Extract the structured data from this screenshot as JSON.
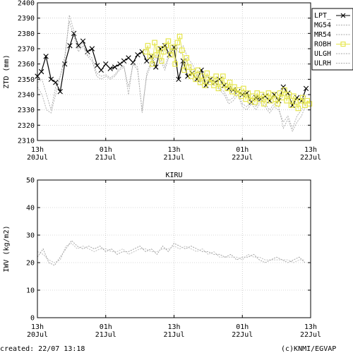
{
  "footer": {
    "created": "created: 22/07 13:18",
    "credit": "(c)KNMI/EGVAP"
  },
  "chart_data": [
    {
      "type": "line",
      "ylabel": "ZTD (mm)",
      "ylim": [
        2310,
        2400
      ],
      "yticks": [
        2310,
        2320,
        2330,
        2340,
        2350,
        2360,
        2370,
        2380,
        2390,
        2400
      ],
      "x_range_hours": [
        0,
        48
      ],
      "xticks": [
        {
          "hour": 0,
          "line1": "13h",
          "line2": "20Jul"
        },
        {
          "hour": 12,
          "line1": "01h",
          "line2": "21Jul"
        },
        {
          "hour": 24,
          "line1": "13h",
          "line2": "21Jul"
        },
        {
          "hour": 36,
          "line1": "01h",
          "line2": "22Jul"
        },
        {
          "hour": 48,
          "line1": "13h",
          "line2": "22Jul"
        }
      ],
      "grid": true,
      "legend_position": "right",
      "series": [
        {
          "name": "LPT_",
          "color": "#000000",
          "marker": "x",
          "x": [
            0,
            0.7,
            1.5,
            2.4,
            3.2,
            4.0,
            4.8,
            5.7,
            6.4,
            7.2,
            8.0,
            8.8,
            9.6,
            10.5,
            11.2,
            12.0,
            12.8,
            13.6,
            14.5,
            15.2,
            16.0,
            16.8,
            17.6,
            18.4,
            19.2,
            20.0,
            20.8,
            21.6,
            22.4,
            23.2,
            24.0,
            24.8,
            25.6,
            26.4,
            27.2,
            28.0,
            28.8,
            29.6,
            30.4,
            31.2,
            32.0,
            32.8,
            33.6,
            34.4,
            35.2,
            36.0,
            36.8,
            37.6,
            38.4,
            39.2,
            40.0,
            40.8,
            41.6,
            42.4,
            43.2,
            44.0,
            44.8,
            45.6,
            46.4,
            47.2
          ],
          "y": [
            2352,
            2355,
            2365,
            2350,
            2348,
            2342,
            2360,
            2372,
            2380,
            2372,
            2375,
            2368,
            2370,
            2359,
            2356,
            2360,
            2357,
            2358,
            2360,
            2362,
            2364,
            2361,
            2366,
            2368,
            2362,
            2365,
            2358,
            2370,
            2372,
            2366,
            2371,
            2350,
            2362,
            2352,
            2354,
            2350,
            2356,
            2346,
            2350,
            2348,
            2350,
            2346,
            2344,
            2343,
            2342,
            2340,
            2341,
            2335,
            2338,
            2337,
            2339,
            2336,
            2340,
            2336,
            2345,
            2341,
            2333,
            2338,
            2336,
            2344
          ]
        },
        {
          "name": "MG54",
          "color": "#aaaaaa",
          "marker": "none",
          "x": [
            0,
            0.8,
            1.6,
            2.4,
            3.2,
            4.0,
            4.8,
            5.6,
            6.4,
            7.2,
            8.0,
            8.8,
            9.6,
            10.4,
            11.2,
            12.0,
            12.8,
            13.6,
            14.4,
            15.2,
            16.0,
            16.8,
            17.6,
            18.4,
            19.2,
            20.0,
            20.8,
            21.6,
            22.4,
            23.2,
            24.0,
            24.8,
            25.6,
            26.4,
            27.2,
            28.0,
            28.8,
            29.6,
            30.4,
            31.2,
            32.0,
            32.8,
            33.6,
            34.4,
            35.2,
            36.0,
            36.8,
            37.6,
            38.4,
            39.2,
            40.0,
            40.8,
            41.6,
            42.4,
            43.2,
            44.0,
            44.8,
            45.6,
            46.4,
            47.2
          ],
          "y": [
            2348,
            2350,
            2340,
            2330,
            2345,
            2352,
            2365,
            2388,
            2378,
            2368,
            2372,
            2365,
            2362,
            2352,
            2350,
            2352,
            2350,
            2352,
            2356,
            2358,
            2345,
            2360,
            2356,
            2330,
            2352,
            2360,
            2364,
            2362,
            2356,
            2366,
            2370,
            2368,
            2366,
            2360,
            2356,
            2352,
            2346,
            2349,
            2348,
            2346,
            2343,
            2340,
            2334,
            2336,
            2340,
            2332,
            2330,
            2334,
            2330,
            2335,
            2332,
            2328,
            2332,
            2330,
            2322,
            2326,
            2318,
            2326,
            2330,
            2340
          ]
        },
        {
          "name": "MR54",
          "color": "#aaaaaa",
          "marker": "none",
          "x": [
            0,
            0.8,
            1.6,
            2.4,
            3.2,
            4.0,
            4.8,
            5.6,
            6.4,
            7.2,
            8.0,
            8.8,
            9.6,
            10.4,
            11.2,
            12.0,
            12.8,
            13.6,
            14.4,
            15.2,
            16.0,
            16.8,
            17.6,
            18.4,
            19.2,
            20.0,
            20.8,
            21.6,
            22.4,
            23.2,
            24.0,
            24.8,
            25.6,
            26.4,
            27.2,
            28.0,
            28.8,
            29.6,
            30.4,
            31.2,
            32.0,
            32.8,
            33.6,
            34.4,
            35.2,
            36.0,
            36.8,
            37.6,
            38.4,
            39.2,
            40.0,
            40.8,
            41.6,
            42.4,
            43.2,
            44.0,
            44.8,
            45.6,
            46.4,
            47.2
          ],
          "y": [
            2345,
            2340,
            2330,
            2328,
            2340,
            2352,
            2362,
            2392,
            2382,
            2370,
            2374,
            2366,
            2364,
            2354,
            2352,
            2353,
            2351,
            2353,
            2357,
            2359,
            2340,
            2361,
            2358,
            2328,
            2354,
            2362,
            2366,
            2364,
            2358,
            2368,
            2372,
            2370,
            2372,
            2364,
            2360,
            2354,
            2348,
            2352,
            2350,
            2348,
            2344,
            2342,
            2336,
            2338,
            2342,
            2334,
            2332,
            2336,
            2332,
            2337,
            2334,
            2330,
            2334,
            2332,
            2318,
            2324,
            2316,
            2322,
            2326,
            2334
          ]
        },
        {
          "name": "ROBH",
          "color": "#e6e64c",
          "marker": "square",
          "x": [
            19.0,
            19.4,
            19.8,
            20.2,
            20.6,
            21.0,
            21.4,
            21.8,
            22.2,
            22.6,
            23.0,
            23.4,
            23.8,
            24.2,
            24.6,
            25.0,
            25.4,
            25.8,
            26.2,
            26.6,
            27.0,
            27.4,
            27.8,
            28.2,
            28.6,
            29.0,
            29.4,
            29.8,
            30.2,
            30.6,
            31.0,
            31.4,
            31.8,
            32.2,
            32.6,
            33.0,
            33.4,
            33.8,
            34.2,
            34.6,
            35.0,
            35.4,
            35.8,
            36.2,
            36.6,
            37.0,
            37.4,
            37.8,
            38.2,
            38.6,
            39.0,
            39.4,
            39.8,
            40.2,
            40.6,
            41.0,
            41.4,
            41.8,
            42.2,
            42.6,
            43.0,
            43.4,
            43.8,
            44.2,
            44.6,
            45.0,
            45.4,
            45.8,
            46.2,
            46.6,
            47.0,
            47.4,
            47.8
          ],
          "y": [
            2368,
            2372,
            2365,
            2360,
            2374,
            2366,
            2370,
            2362,
            2368,
            2372,
            2375,
            2366,
            2371,
            2360,
            2374,
            2378,
            2369,
            2356,
            2364,
            2358,
            2352,
            2355,
            2350,
            2356,
            2348,
            2352,
            2346,
            2354,
            2348,
            2350,
            2346,
            2352,
            2344,
            2348,
            2352,
            2346,
            2344,
            2348,
            2342,
            2345,
            2341,
            2343,
            2339,
            2344,
            2337,
            2341,
            2336,
            2339,
            2335,
            2341,
            2337,
            2340,
            2334,
            2338,
            2341,
            2336,
            2340,
            2337,
            2334,
            2341,
            2338,
            2343,
            2336,
            2340,
            2333,
            2339,
            2335,
            2331,
            2336,
            2338,
            2333,
            2336,
            2334
          ]
        },
        {
          "name": "ULGH",
          "color": "#aaaaaa",
          "marker": "none",
          "x": [],
          "y": []
        },
        {
          "name": "ULRH",
          "color": "#aaaaaa",
          "marker": "none",
          "x": [],
          "y": []
        }
      ]
    },
    {
      "type": "line",
      "title": "KIRU",
      "ylabel": "IWV (kg/m2)",
      "ylim": [
        0,
        50
      ],
      "yticks": [
        0,
        10,
        20,
        30,
        40,
        50
      ],
      "x_range_hours": [
        0,
        48
      ],
      "xticks": [
        {
          "hour": 0,
          "line1": "13h",
          "line2": "20Jul"
        },
        {
          "hour": 12,
          "line1": "01h",
          "line2": "21Jul"
        },
        {
          "hour": 24,
          "line1": "13h",
          "line2": "21Jul"
        },
        {
          "hour": 36,
          "line1": "01h",
          "line2": "22Jul"
        },
        {
          "hour": 48,
          "line1": "13h",
          "line2": "22Jul"
        }
      ],
      "grid": true,
      "series": [
        {
          "name": "",
          "color": "#999999",
          "marker": "none",
          "x": [
            0,
            1.0,
            2.0,
            3.0,
            4.0,
            5.0,
            6.0,
            7.0,
            8.0,
            9.0,
            10.0,
            11.0,
            12.0,
            13.0,
            14.0,
            15.0,
            16.0,
            17.0,
            18.0,
            19.0,
            20.0,
            21.0,
            22.0,
            23.0,
            24.0,
            25.0,
            26.0,
            27.0,
            28.0,
            29.0,
            30.0,
            31.0,
            32.0,
            33.0,
            34.0,
            35.0,
            36.0,
            37.0,
            38.0,
            39.0,
            40.0,
            41.0,
            42.0,
            43.0,
            44.0,
            45.0,
            46.0,
            47.0
          ],
          "y": [
            22,
            25,
            20,
            19,
            22,
            25,
            28,
            26,
            25,
            26,
            25,
            26,
            24,
            25,
            23,
            24,
            24,
            25,
            26,
            24,
            25,
            23,
            26,
            24,
            27,
            26,
            25,
            26,
            25,
            24,
            24,
            23,
            23,
            22,
            23,
            21,
            22,
            22,
            23,
            21,
            20,
            21,
            22,
            21,
            20,
            21,
            22,
            20
          ]
        },
        {
          "name": "",
          "color": "#bbbbbb",
          "marker": "none",
          "x": [
            0,
            1.0,
            2.0,
            3.0,
            4.0,
            5.0,
            6.0,
            7.0,
            8.0,
            9.0,
            10.0,
            11.0,
            12.0,
            13.0,
            14.0,
            15.0,
            16.0,
            17.0,
            18.0,
            19.0,
            20.0,
            21.0,
            22.0,
            23.0,
            24.0,
            25.0,
            26.0,
            27.0,
            28.0,
            29.0,
            30.0,
            31.0,
            32.0,
            33.0,
            34.0,
            35.0,
            36.0,
            37.0,
            38.0,
            39.0,
            40.0,
            41.0,
            42.0,
            43.0,
            44.0,
            45.0,
            46.0,
            47.0
          ],
          "y": [
            24,
            23,
            21,
            20,
            21,
            26,
            27,
            25,
            26,
            25,
            24,
            25,
            25,
            24,
            24,
            25,
            23,
            24,
            25,
            25,
            24,
            24,
            25,
            25,
            26,
            25,
            26,
            25,
            24,
            25,
            23,
            24,
            22,
            22,
            22,
            22,
            21,
            23,
            22,
            22,
            21,
            21,
            21,
            21,
            21,
            20,
            21,
            21
          ]
        }
      ]
    }
  ]
}
